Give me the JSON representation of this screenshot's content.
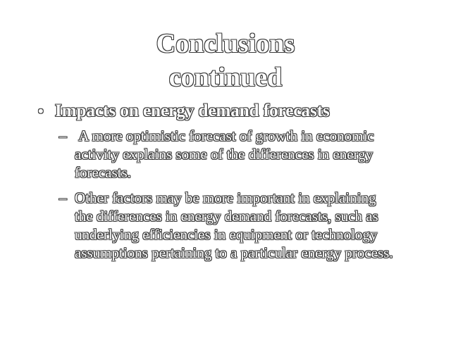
{
  "slide": {
    "title_line1": "Conclusions",
    "title_line2": "continued",
    "bullet": {
      "marker": "•",
      "text": "Impacts on energy demand forecasts"
    },
    "sub_bullets": [
      {
        "marker": "–",
        "text": " A more optimistic forecast of growth in economic activity explains some of the differences in energy forecasts."
      },
      {
        "marker": "–",
        "text": "Other factors may be more important in explaining the differences in energy demand forecasts, such as underlying efficiencies in equipment or technology assumptions pertaining to a particular energy process."
      }
    ]
  }
}
